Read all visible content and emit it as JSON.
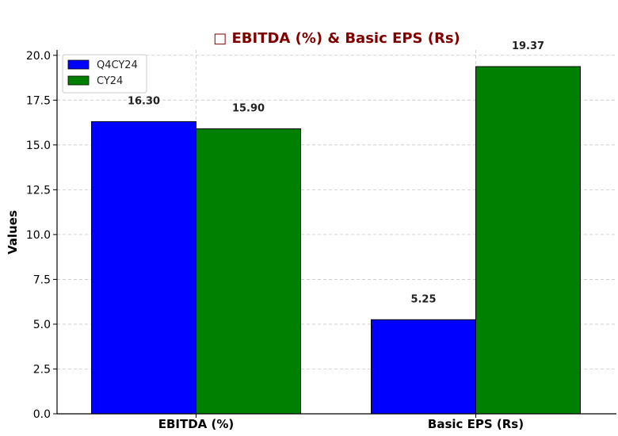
{
  "chart_data": {
    "type": "bar",
    "title": "□ EBITDA (%) & Basic EPS (Rs)",
    "title_color": "#800000",
    "xlabel": "",
    "ylabel": "Values",
    "categories": [
      "EBITDA (%)",
      "Basic EPS (Rs)"
    ],
    "series": [
      {
        "name": "Q4CY24",
        "color": "#0000ff",
        "values": [
          16.3,
          5.25
        ],
        "labels": [
          "16.30",
          "5.25"
        ]
      },
      {
        "name": "CY24",
        "color": "#008000",
        "values": [
          15.9,
          19.37
        ],
        "labels": [
          "15.90",
          "19.37"
        ]
      }
    ],
    "ylim": [
      0,
      20.3
    ],
    "yticks": [
      "0.0",
      "2.5",
      "5.0",
      "7.5",
      "10.0",
      "12.5",
      "15.0",
      "17.5",
      "20.0"
    ],
    "grid": true,
    "legend_position": "top-left"
  }
}
